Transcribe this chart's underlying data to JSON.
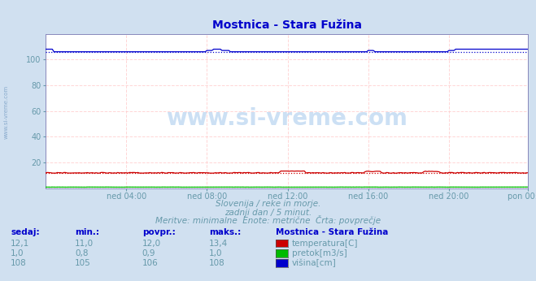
{
  "title": "Mostnica - Stara Fužina",
  "title_color": "#0000cc",
  "bg_color": "#d0e0f0",
  "plot_bg_color": "#ffffff",
  "grid_color_minor": "#ffcccc",
  "grid_color_major": "#ffaaaa",
  "spine_color": "#8888bb",
  "tick_color": "#6699aa",
  "n_points": 288,
  "x_tick_labels": [
    "ned 04:00",
    "ned 08:00",
    "ned 12:00",
    "ned 16:00",
    "ned 20:00",
    "pon 00:00"
  ],
  "x_tick_positions": [
    48,
    96,
    144,
    192,
    240,
    287
  ],
  "ylim": [
    0,
    120
  ],
  "yticks": [
    20,
    40,
    60,
    80,
    100
  ],
  "temp_color": "#cc0000",
  "pretok_color": "#00bb00",
  "visina_color": "#0000cc",
  "temp_avg": 12.0,
  "temp_min": 11.0,
  "temp_max": 13.4,
  "temp_sedaj": "12,1",
  "temp_min_str": "11,0",
  "temp_avg_str": "12,0",
  "temp_max_str": "13,4",
  "pretok_avg": 0.9,
  "pretok_min": 0.8,
  "pretok_max": 1.0,
  "pretok_sedaj": "1,0",
  "pretok_min_str": "0,8",
  "pretok_avg_str": "0,9",
  "pretok_max_str": "1,0",
  "visina_avg": 106,
  "visina_min": 105,
  "visina_max": 108,
  "visina_sedaj": "108",
  "visina_min_str": "105",
  "visina_avg_str": "106",
  "visina_max_str": "108",
  "watermark": "www.si-vreme.com",
  "subtitle1": "Slovenija / reke in morje.",
  "subtitle2": "zadnji dan / 5 minut.",
  "subtitle3": "Meritve: minimalne  Enote: metrične  Črta: povprečje",
  "table_headers": [
    "sedaj:",
    "min.:",
    "povpr.:",
    "maks.:"
  ],
  "station_label": "Mostnica - Stara Fužina",
  "legend_labels": [
    "temperatura[C]",
    "pretok[m3/s]",
    "višina[cm]"
  ]
}
